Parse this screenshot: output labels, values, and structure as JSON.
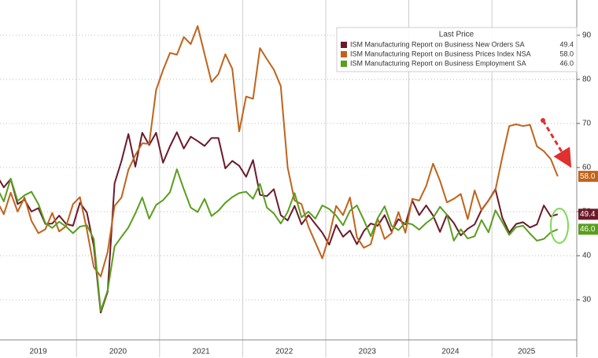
{
  "chart_data": {
    "type": "line",
    "legend_title": "Last Price",
    "legend_position": "upper right",
    "categories": [
      "2019",
      null,
      null,
      null,
      null,
      null,
      null,
      null,
      null,
      null,
      null,
      null,
      "2020",
      null,
      null,
      null,
      null,
      null,
      null,
      null,
      null,
      null,
      null,
      null,
      "2021",
      null,
      null,
      null,
      null,
      null,
      null,
      null,
      null,
      null,
      null,
      null,
      "2022",
      null,
      null,
      null,
      null,
      null,
      null,
      null,
      null,
      null,
      null,
      null,
      "2023",
      null,
      null,
      null,
      null,
      null,
      null,
      null,
      null,
      null,
      null,
      null,
      "2024",
      null,
      null,
      null,
      null,
      null,
      null,
      null,
      null,
      null,
      null,
      null,
      "2025",
      null,
      null,
      null,
      null,
      null,
      null,
      null,
      null,
      null
    ],
    "series": [
      {
        "name": "ISM Manufacturing Report on Business New Orders SA",
        "color": "#6b1a2a",
        "last_label": "49.4",
        "values": [
          58.2,
          55.5,
          57.4,
          51.7,
          52.7,
          50.0,
          50.8,
          47.2,
          47.3,
          49.1,
          47.2,
          46.8,
          52.0,
          49.8,
          42.2,
          27.1,
          31.8,
          56.4,
          61.5,
          67.6,
          60.2,
          67.9,
          65.1,
          67.9,
          61.1,
          64.8,
          68.0,
          64.3,
          67.0,
          66.0,
          64.9,
          66.7,
          66.7,
          59.8,
          61.5,
          60.4,
          57.9,
          61.7,
          53.8,
          53.5,
          55.1,
          49.2,
          48.0,
          51.3,
          47.1,
          49.2,
          47.2,
          45.2,
          42.5,
          47.0,
          44.3,
          45.7,
          42.6,
          45.6,
          47.3,
          46.8,
          49.2,
          45.5,
          48.3,
          47.1,
          52.5,
          49.2,
          51.4,
          49.1,
          45.4,
          49.3,
          47.4,
          44.6,
          46.1,
          47.1,
          50.4,
          52.5,
          55.1,
          48.6,
          45.2,
          47.2,
          47.6,
          46.4,
          47.1,
          51.4,
          48.9,
          49.4
        ]
      },
      {
        "name": "ISM Manufacturing Report on Business Prices Index NSA",
        "color": "#c0631b",
        "last_label": "58.0",
        "values": [
          52.5,
          49.4,
          54.3,
          50.0,
          53.2,
          47.9,
          45.1,
          46.0,
          49.7,
          45.5,
          46.7,
          51.7,
          53.3,
          45.9,
          37.4,
          35.3,
          40.8,
          51.3,
          53.2,
          59.5,
          62.8,
          65.5,
          65.4,
          77.6,
          82.1,
          86.0,
          85.6,
          89.6,
          88.0,
          92.1,
          85.7,
          79.4,
          81.2,
          85.7,
          82.4,
          68.2,
          76.1,
          75.6,
          87.1,
          84.6,
          82.2,
          78.5,
          60.0,
          52.5,
          51.7,
          46.6,
          43.0,
          39.4,
          44.5,
          51.3,
          49.2,
          53.2,
          44.2,
          41.8,
          42.6,
          48.4,
          43.8,
          45.1,
          49.9,
          45.2,
          52.9,
          52.5,
          55.8,
          60.9,
          57.0,
          52.1,
          52.9,
          54.0,
          48.3,
          54.8,
          50.3,
          52.5,
          54.9,
          62.4,
          69.4,
          69.8,
          69.4,
          69.7,
          64.8,
          63.7,
          61.9,
          58.0
        ]
      },
      {
        "name": "ISM Manufacturing Report on Business Employment SA",
        "color": "#5a9e1e",
        "last_label": "46.0",
        "values": [
          55.5,
          52.3,
          57.5,
          52.4,
          53.7,
          54.5,
          51.7,
          47.4,
          46.3,
          47.7,
          46.6,
          45.1,
          46.6,
          46.9,
          43.8,
          27.5,
          32.1,
          42.1,
          44.3,
          46.4,
          49.6,
          53.2,
          48.4,
          51.5,
          52.6,
          54.4,
          59.6,
          55.1,
          50.9,
          49.9,
          52.9,
          49.0,
          50.2,
          52.0,
          53.3,
          54.2,
          54.5,
          52.9,
          56.3,
          50.9,
          49.6,
          47.3,
          49.9,
          54.2,
          48.7,
          50.0,
          48.4,
          51.4,
          50.6,
          49.1,
          46.9,
          50.2,
          51.4,
          48.1,
          44.4,
          48.5,
          51.2,
          46.8,
          45.8,
          47.5,
          47.1,
          45.9,
          47.4,
          48.6,
          51.1,
          49.3,
          43.4,
          46.0,
          43.9,
          44.4,
          48.1,
          45.3,
          50.3,
          47.6,
          44.7,
          46.5,
          46.8,
          45.0,
          43.4,
          43.8,
          45.3,
          46.0
        ]
      }
    ],
    "ylim": [
      20.9,
      98.0
    ],
    "yticks": [
      30,
      40,
      50,
      60,
      70,
      80,
      90
    ],
    "grid": true
  }
}
